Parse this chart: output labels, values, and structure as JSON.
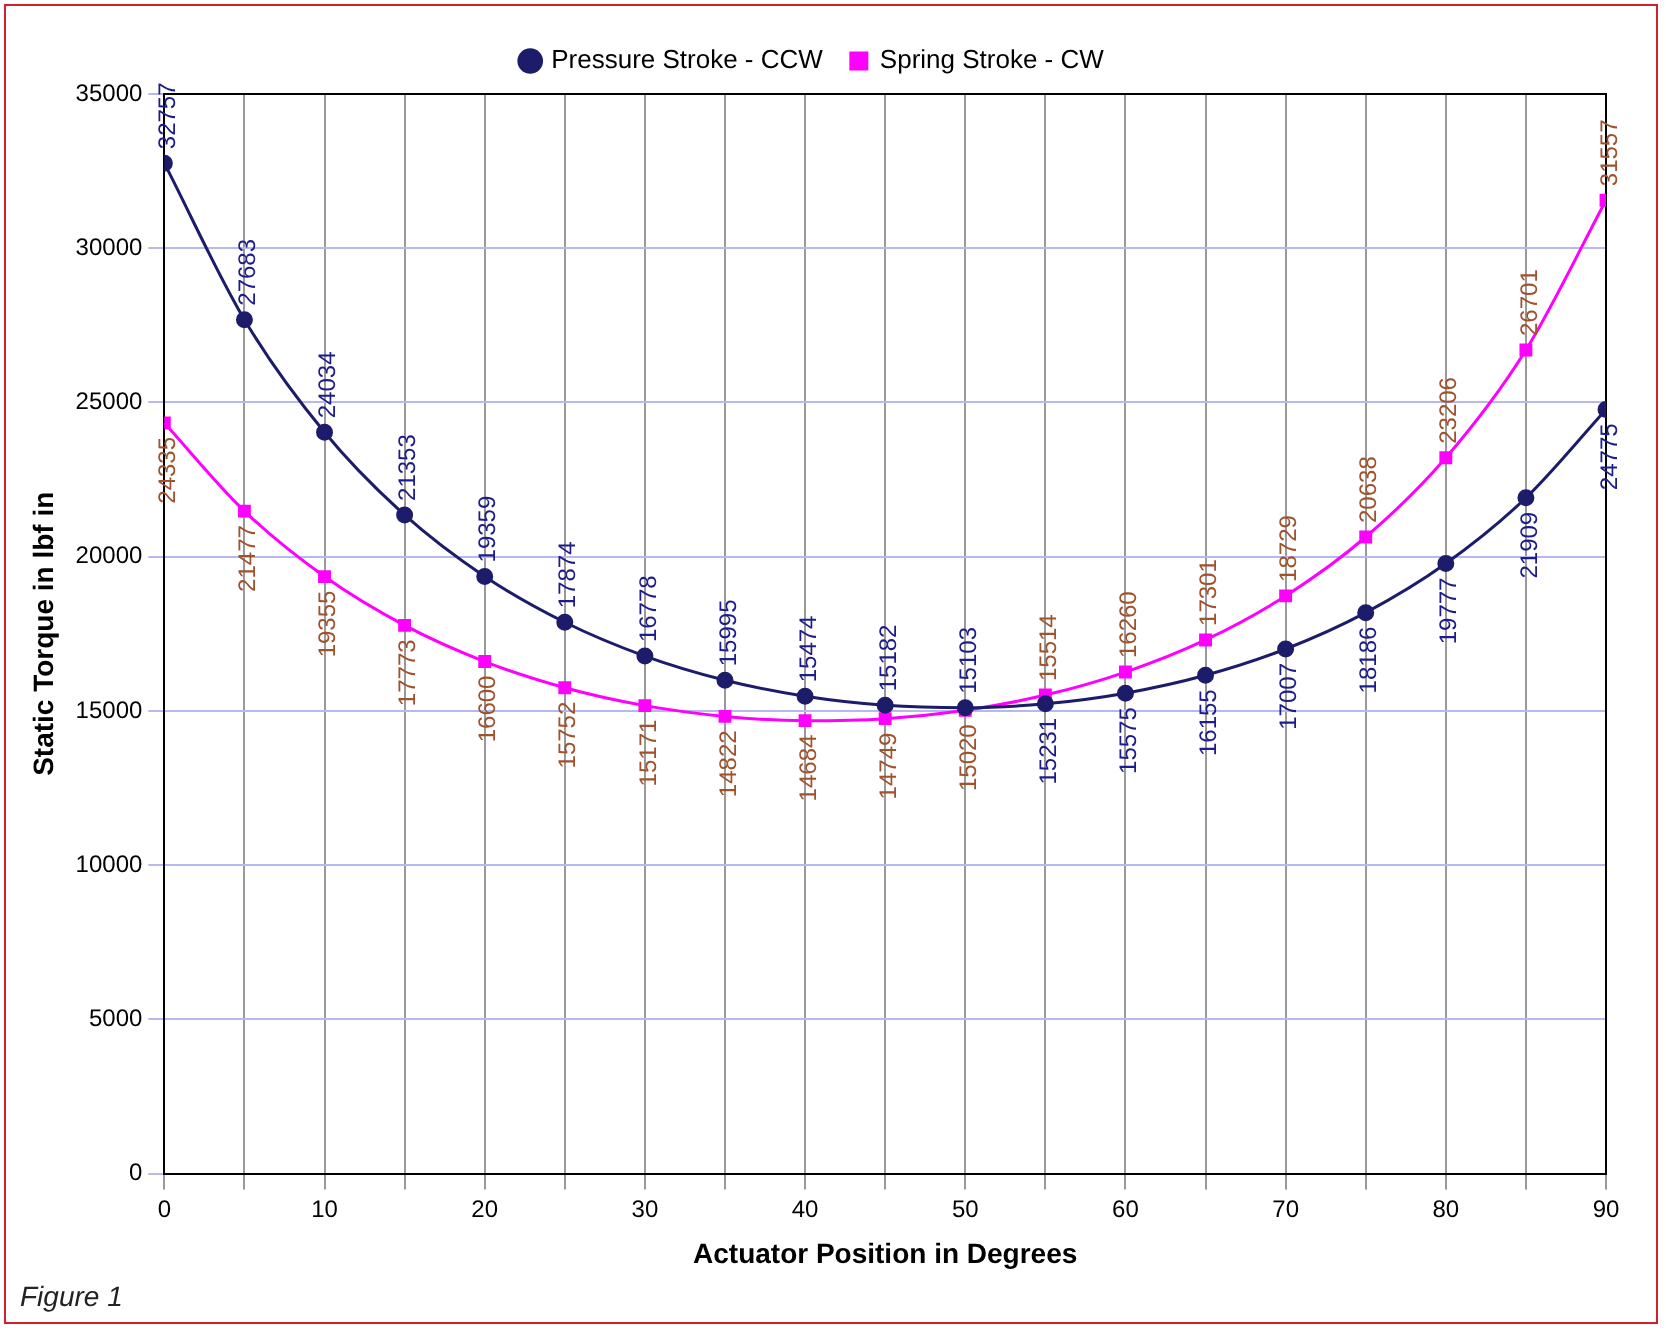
{
  "chart_data": {
    "type": "line",
    "xlabel": "Actuator Position in Degrees",
    "ylabel": "Static Torque in lbf in",
    "x": [
      0,
      5,
      10,
      15,
      20,
      25,
      30,
      35,
      40,
      45,
      50,
      55,
      60,
      65,
      70,
      75,
      80,
      85,
      90
    ],
    "series": [
      {
        "name": "Pressure Stroke - CCW",
        "color": "#1c1c6b",
        "marker": "circle",
        "values": [
          32757,
          27683,
          24034,
          21353,
          19359,
          17874,
          16778,
          15995,
          15474,
          15182,
          15103,
          15231,
          15575,
          16155,
          17007,
          18186,
          19777,
          21909,
          24775
        ]
      },
      {
        "name": "Spring Stroke - CW",
        "color": "#ff00ff",
        "marker": "square",
        "values": [
          24335,
          21477,
          19355,
          17773,
          16600,
          15752,
          15171,
          14822,
          14684,
          14749,
          15020,
          15514,
          16260,
          17301,
          18729,
          20638,
          23206,
          26701,
          31557
        ]
      }
    ],
    "xlim": [
      0,
      90
    ],
    "xticks": [
      0,
      {
        "value": 5,
        "label": null
      },
      10,
      {
        "value": 15,
        "label": null
      },
      20,
      {
        "value": 25,
        "label": null
      },
      30,
      {
        "value": 35,
        "label": null
      },
      40,
      {
        "value": 45,
        "label": null
      },
      50,
      {
        "value": 55,
        "label": null
      },
      60,
      {
        "value": 65,
        "label": null
      },
      70,
      {
        "value": 75,
        "label": null
      },
      80,
      {
        "value": 85,
        "label": null
      },
      90
    ],
    "ylim": [
      0,
      35000
    ],
    "yticks": [
      0,
      5000,
      10000,
      15000,
      20000,
      25000,
      30000,
      35000
    ],
    "grid": true,
    "legend": "top",
    "data_labels": true,
    "line_style": "solid",
    "annotations": [
      "Figure 1"
    ]
  }
}
